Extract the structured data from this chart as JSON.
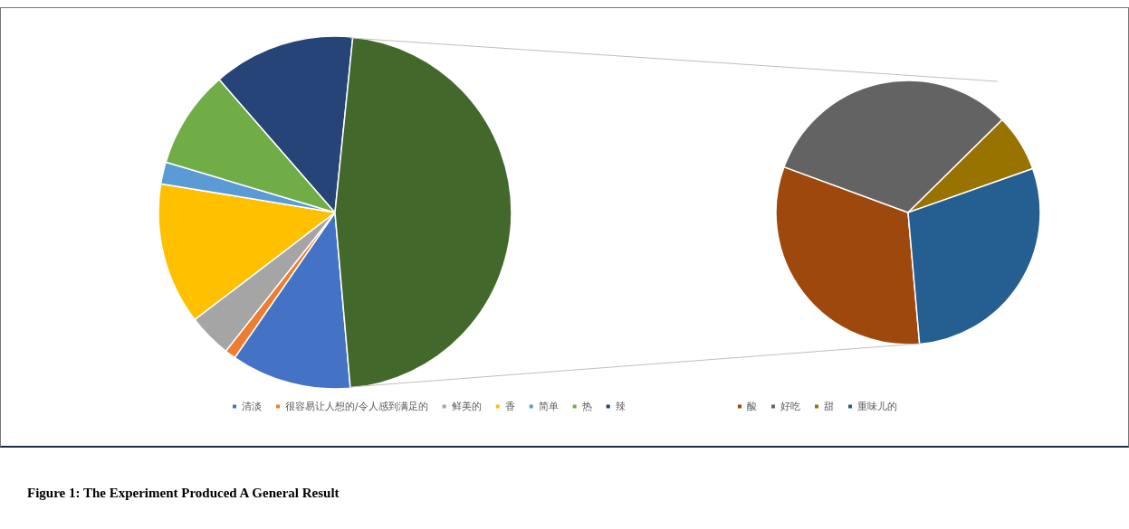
{
  "chart_data": [
    {
      "type": "pie",
      "categories": [
        "清淡",
        "很容易让人想的/令人感到满足的",
        "鲜美的",
        "香",
        "简单",
        "热",
        "辣",
        null
      ],
      "values": [
        11,
        1,
        4,
        13,
        2,
        9,
        13,
        47
      ],
      "colors": [
        "#4472c4",
        "#ed7d31",
        "#a5a5a5",
        "#ffc000",
        "#5b9bd5",
        "#70ad47",
        "#264478",
        "#43682b"
      ],
      "legend": "bottom",
      "annotations": [
        "Figure 1: The Experiment Produced A General Result"
      ]
    },
    {
      "type": "pie",
      "categories": [
        "酸",
        "好吃",
        "甜",
        "重味儿的"
      ],
      "values": [
        32,
        32,
        7,
        29
      ],
      "colors": [
        "#9e480e",
        "#636363",
        "#997300",
        "#255e91"
      ],
      "legend": "bottom"
    }
  ]
}
